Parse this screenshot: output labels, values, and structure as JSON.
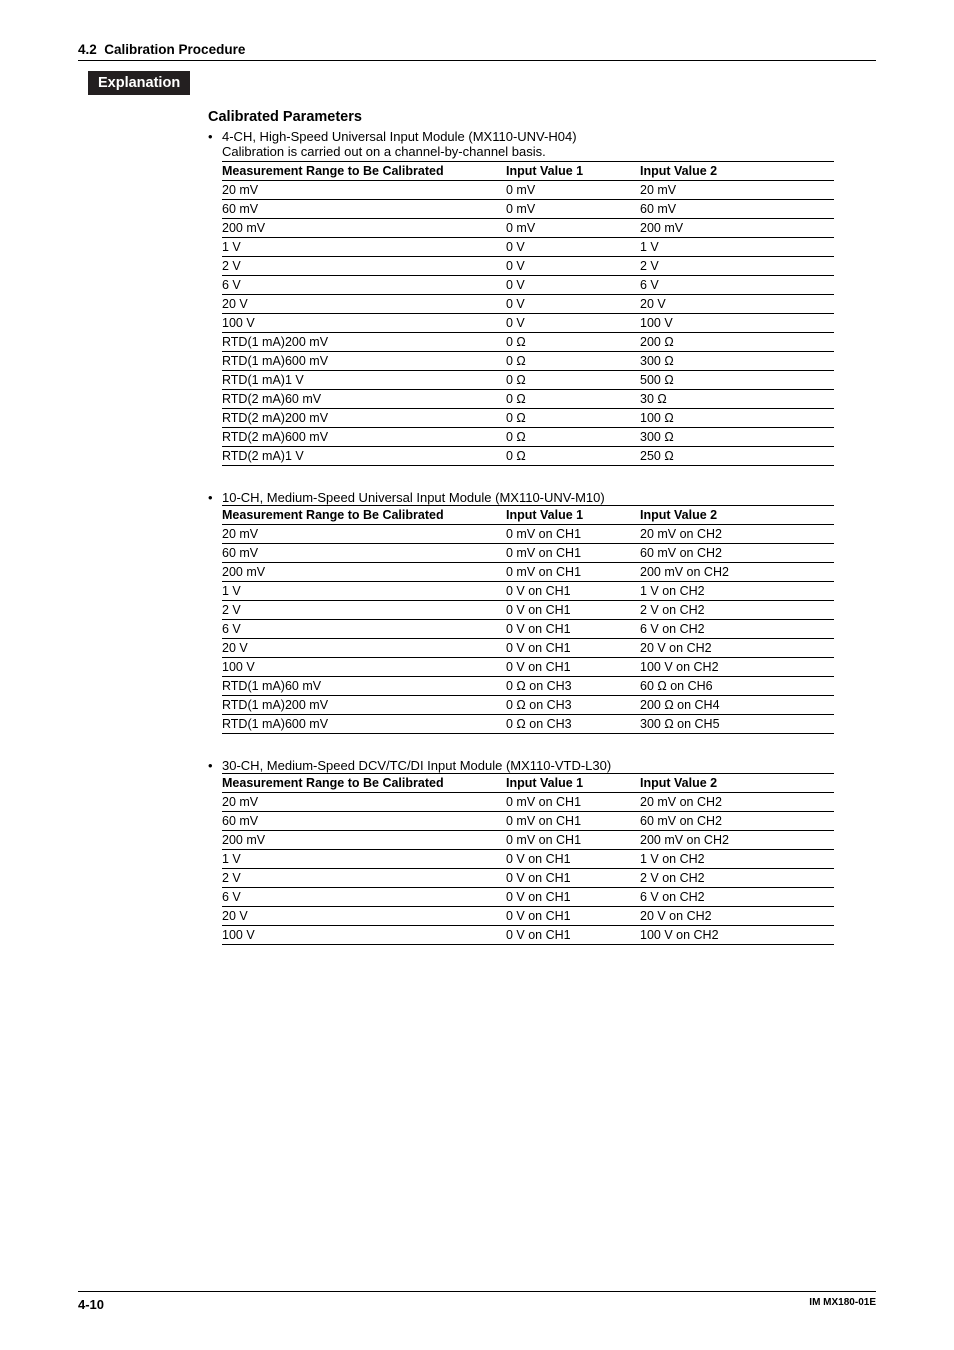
{
  "header": {
    "section_number": "4.2",
    "section_title": "Calibration Procedure"
  },
  "explanation_label": "Explanation",
  "calibrated_heading": "Calibrated Parameters",
  "column_headers": {
    "range": "Measurement Range to Be Calibrated",
    "iv1": "Input Value 1",
    "iv2": "Input Value 2"
  },
  "tables": [
    {
      "bullet": "4-CH, High-Speed Universal Input Module (MX110-UNV-H04)",
      "note": "Calibration is carried out on a channel-by-channel basis.",
      "rows": [
        {
          "range": "20 mV",
          "iv1": "0 mV",
          "iv2": "20 mV"
        },
        {
          "range": "60 mV",
          "iv1": "0 mV",
          "iv2": "60 mV"
        },
        {
          "range": "200 mV",
          "iv1": "0 mV",
          "iv2": "200 mV"
        },
        {
          "range": "1 V",
          "iv1": "0 V",
          "iv2": "1 V"
        },
        {
          "range": "2 V",
          "iv1": "0 V",
          "iv2": "2 V"
        },
        {
          "range": "6 V",
          "iv1": "0 V",
          "iv2": "6 V"
        },
        {
          "range": "20 V",
          "iv1": "0 V",
          "iv2": "20 V"
        },
        {
          "range": "100 V",
          "iv1": "0 V",
          "iv2": "100 V"
        },
        {
          "range": "RTD(1 mA)200 mV",
          "iv1": "0 Ω",
          "iv2": "200 Ω"
        },
        {
          "range": "RTD(1 mA)600 mV",
          "iv1": "0 Ω",
          "iv2": "300 Ω"
        },
        {
          "range": "RTD(1 mA)1 V",
          "iv1": "0 Ω",
          "iv2": "500 Ω"
        },
        {
          "range": "RTD(2 mA)60 mV",
          "iv1": "0 Ω",
          "iv2": "30 Ω"
        },
        {
          "range": "RTD(2 mA)200 mV",
          "iv1": "0 Ω",
          "iv2": "100 Ω"
        },
        {
          "range": "RTD(2 mA)600 mV",
          "iv1": "0 Ω",
          "iv2": "300 Ω"
        },
        {
          "range": "RTD(2 mA)1 V",
          "iv1": "0 Ω",
          "iv2": "250 Ω"
        }
      ]
    },
    {
      "bullet": "10-CH, Medium-Speed Universal Input Module (MX110-UNV-M10)",
      "note": "",
      "rows": [
        {
          "range": "20 mV",
          "iv1": "0 mV on CH1",
          "iv2": "20 mV on CH2"
        },
        {
          "range": "60 mV",
          "iv1": "0 mV on CH1",
          "iv2": "60 mV on CH2"
        },
        {
          "range": "200 mV",
          "iv1": "0 mV on CH1",
          "iv2": "200 mV on CH2"
        },
        {
          "range": "1 V",
          "iv1": "0 V on CH1",
          "iv2": "1 V on CH2"
        },
        {
          "range": "2 V",
          "iv1": "0 V on CH1",
          "iv2": "2 V on CH2"
        },
        {
          "range": "6 V",
          "iv1": "0 V on CH1",
          "iv2": "6 V on CH2"
        },
        {
          "range": "20 V",
          "iv1": "0 V on CH1",
          "iv2": "20 V on CH2"
        },
        {
          "range": "100 V",
          "iv1": "0 V on CH1",
          "iv2": "100 V on CH2"
        },
        {
          "range": "RTD(1 mA)60 mV",
          "iv1": "0 Ω on CH3",
          "iv2": "60 Ω on CH6"
        },
        {
          "range": "RTD(1 mA)200 mV",
          "iv1": "0 Ω on CH3",
          "iv2": "200 Ω on CH4"
        },
        {
          "range": "RTD(1 mA)600 mV",
          "iv1": "0 Ω on CH3",
          "iv2": "300 Ω on CH5"
        }
      ]
    },
    {
      "bullet": "30-CH, Medium-Speed DCV/TC/DI Input Module (MX110-VTD-L30)",
      "note": "",
      "rows": [
        {
          "range": "20 mV",
          "iv1": "0 mV on CH1",
          "iv2": "20 mV on CH2"
        },
        {
          "range": "60 mV",
          "iv1": "0 mV on CH1",
          "iv2": "60 mV on CH2"
        },
        {
          "range": "200 mV",
          "iv1": "0 mV on CH1",
          "iv2": "200 mV on CH2"
        },
        {
          "range": "1 V",
          "iv1": "0 V on CH1",
          "iv2": "1 V on CH2"
        },
        {
          "range": "2 V",
          "iv1": "0 V on CH1",
          "iv2": "2 V on CH2"
        },
        {
          "range": "6 V",
          "iv1": "0 V on CH1",
          "iv2": "6 V on CH2"
        },
        {
          "range": "20 V",
          "iv1": "0 V on CH1",
          "iv2": "20 V on CH2"
        },
        {
          "range": "100 V",
          "iv1": "0 V on CH1",
          "iv2": "100 V on CH2"
        }
      ]
    }
  ],
  "footer": {
    "page": "4-10",
    "doc": "IM MX180-01E"
  }
}
